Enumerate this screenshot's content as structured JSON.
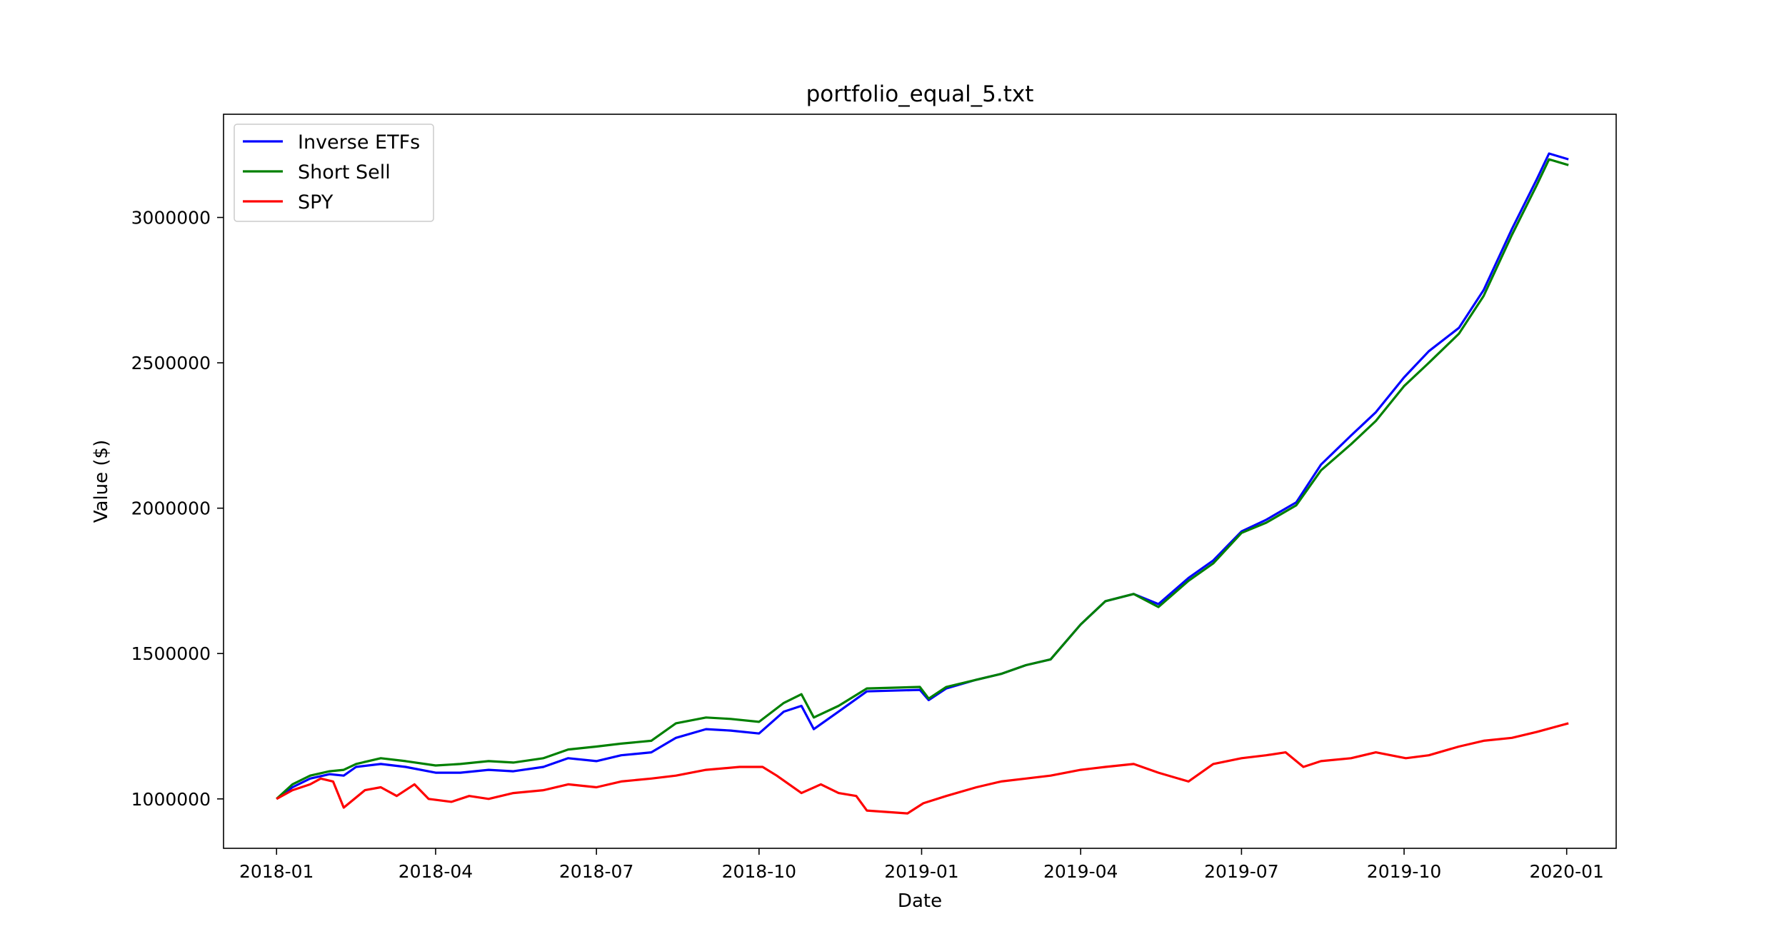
{
  "chart_data": {
    "type": "line",
    "title": "portfolio_equal_5.txt",
    "xlabel": "Date",
    "ylabel": "Value ($)",
    "xlim": [
      "2017-12-02",
      "2020-01-29"
    ],
    "ylim": [
      830000,
      3355000
    ],
    "x_ticks": [
      "2018-01",
      "2018-04",
      "2018-07",
      "2018-10",
      "2019-01",
      "2019-04",
      "2019-07",
      "2019-10",
      "2020-01"
    ],
    "y_ticks": [
      1000000,
      1500000,
      2000000,
      2500000,
      3000000
    ],
    "grid": false,
    "legend": "upper-left",
    "series": [
      {
        "name": "Inverse ETFs",
        "color": "#0000ff",
        "x": [
          "2018-01-01",
          "2018-01-10",
          "2018-01-20",
          "2018-01-31",
          "2018-02-08",
          "2018-02-15",
          "2018-03-01",
          "2018-03-15",
          "2018-04-01",
          "2018-04-15",
          "2018-05-01",
          "2018-05-15",
          "2018-06-01",
          "2018-06-15",
          "2018-07-01",
          "2018-07-15",
          "2018-08-01",
          "2018-08-15",
          "2018-09-01",
          "2018-09-15",
          "2018-10-01",
          "2018-10-15",
          "2018-10-25",
          "2018-11-01",
          "2018-11-15",
          "2018-12-01",
          "2018-12-31",
          "2019-01-05",
          "2019-01-15",
          "2019-02-01",
          "2019-02-15",
          "2019-03-01",
          "2019-03-15",
          "2019-04-01",
          "2019-04-15",
          "2019-05-01",
          "2019-05-15",
          "2019-06-01",
          "2019-06-15",
          "2019-07-01",
          "2019-07-15",
          "2019-08-01",
          "2019-08-15",
          "2019-09-01",
          "2019-09-15",
          "2019-10-01",
          "2019-10-15",
          "2019-11-01",
          "2019-11-15",
          "2019-12-01",
          "2019-12-15",
          "2019-12-22",
          "2020-01-02"
        ],
        "values": [
          1000000,
          1040000,
          1070000,
          1085000,
          1080000,
          1110000,
          1120000,
          1110000,
          1090000,
          1090000,
          1100000,
          1095000,
          1110000,
          1140000,
          1130000,
          1150000,
          1160000,
          1210000,
          1240000,
          1235000,
          1225000,
          1300000,
          1320000,
          1240000,
          1300000,
          1370000,
          1375000,
          1340000,
          1380000,
          1410000,
          1430000,
          1460000,
          1480000,
          1600000,
          1680000,
          1705000,
          1670000,
          1760000,
          1820000,
          1920000,
          1960000,
          2020000,
          2150000,
          2250000,
          2330000,
          2450000,
          2540000,
          2620000,
          2750000,
          2960000,
          3130000,
          3220000,
          3200000
        ]
      },
      {
        "name": "Short Sell",
        "color": "#008000",
        "x": [
          "2018-01-01",
          "2018-01-10",
          "2018-01-20",
          "2018-01-31",
          "2018-02-08",
          "2018-02-15",
          "2018-03-01",
          "2018-03-15",
          "2018-04-01",
          "2018-04-15",
          "2018-05-01",
          "2018-05-15",
          "2018-06-01",
          "2018-06-15",
          "2018-07-01",
          "2018-07-15",
          "2018-08-01",
          "2018-08-15",
          "2018-09-01",
          "2018-09-15",
          "2018-10-01",
          "2018-10-15",
          "2018-10-25",
          "2018-11-01",
          "2018-11-15",
          "2018-12-01",
          "2018-12-31",
          "2019-01-05",
          "2019-01-15",
          "2019-02-01",
          "2019-02-15",
          "2019-03-01",
          "2019-03-15",
          "2019-04-01",
          "2019-04-15",
          "2019-05-01",
          "2019-05-15",
          "2019-06-01",
          "2019-06-15",
          "2019-07-01",
          "2019-07-15",
          "2019-08-01",
          "2019-08-15",
          "2019-09-01",
          "2019-09-15",
          "2019-10-01",
          "2019-10-15",
          "2019-11-01",
          "2019-11-15",
          "2019-12-01",
          "2019-12-15",
          "2019-12-22",
          "2020-01-02"
        ],
        "values": [
          1000000,
          1050000,
          1080000,
          1095000,
          1100000,
          1120000,
          1140000,
          1130000,
          1115000,
          1120000,
          1130000,
          1125000,
          1140000,
          1170000,
          1180000,
          1190000,
          1200000,
          1260000,
          1280000,
          1275000,
          1265000,
          1330000,
          1360000,
          1280000,
          1320000,
          1380000,
          1385000,
          1345000,
          1385000,
          1410000,
          1430000,
          1460000,
          1480000,
          1600000,
          1680000,
          1705000,
          1660000,
          1750000,
          1810000,
          1915000,
          1950000,
          2010000,
          2130000,
          2220000,
          2300000,
          2420000,
          2500000,
          2600000,
          2730000,
          2940000,
          3110000,
          3200000,
          3180000
        ]
      },
      {
        "name": "SPY",
        "color": "#ff0000",
        "x": [
          "2018-01-01",
          "2018-01-10",
          "2018-01-20",
          "2018-01-26",
          "2018-02-02",
          "2018-02-08",
          "2018-02-20",
          "2018-03-01",
          "2018-03-10",
          "2018-03-20",
          "2018-03-28",
          "2018-04-10",
          "2018-04-20",
          "2018-05-01",
          "2018-05-15",
          "2018-06-01",
          "2018-06-15",
          "2018-07-01",
          "2018-07-15",
          "2018-08-01",
          "2018-08-15",
          "2018-09-01",
          "2018-09-20",
          "2018-10-03",
          "2018-10-11",
          "2018-10-25",
          "2018-11-05",
          "2018-11-15",
          "2018-11-25",
          "2018-12-01",
          "2018-12-24",
          "2019-01-02",
          "2019-01-15",
          "2019-02-01",
          "2019-02-15",
          "2019-03-01",
          "2019-03-15",
          "2019-04-01",
          "2019-04-15",
          "2019-05-01",
          "2019-05-15",
          "2019-06-01",
          "2019-06-15",
          "2019-07-01",
          "2019-07-15",
          "2019-07-26",
          "2019-08-05",
          "2019-08-15",
          "2019-09-01",
          "2019-09-15",
          "2019-10-02",
          "2019-10-15",
          "2019-11-01",
          "2019-11-15",
          "2019-12-01",
          "2019-12-15",
          "2020-01-02"
        ],
        "values": [
          1000000,
          1030000,
          1050000,
          1070000,
          1060000,
          970000,
          1030000,
          1040000,
          1010000,
          1050000,
          1000000,
          990000,
          1010000,
          1000000,
          1020000,
          1030000,
          1050000,
          1040000,
          1060000,
          1070000,
          1080000,
          1100000,
          1110000,
          1110000,
          1080000,
          1020000,
          1050000,
          1020000,
          1010000,
          960000,
          950000,
          985000,
          1010000,
          1040000,
          1060000,
          1070000,
          1080000,
          1100000,
          1110000,
          1120000,
          1090000,
          1060000,
          1120000,
          1140000,
          1150000,
          1160000,
          1110000,
          1130000,
          1140000,
          1160000,
          1140000,
          1150000,
          1180000,
          1200000,
          1210000,
          1230000,
          1260000
        ]
      }
    ]
  }
}
